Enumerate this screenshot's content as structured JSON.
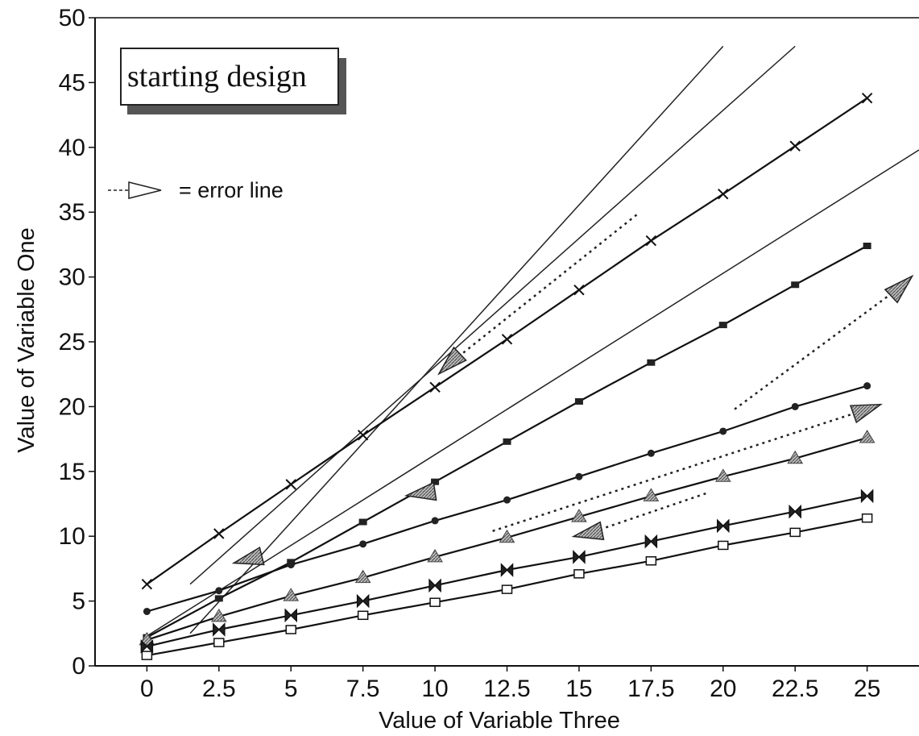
{
  "chart_data": {
    "type": "line",
    "xlabel": "Value of Variable Three",
    "ylabel": "Value of Variable One",
    "xlim": [
      -1.8,
      26.8
    ],
    "ylim": [
      0,
      50
    ],
    "x_ticks": [
      "0",
      "2.5",
      "5",
      "7.5",
      "10",
      "12.5",
      "15",
      "17.5",
      "20",
      "22.5",
      "25"
    ],
    "y_ticks": [
      "0",
      "5",
      "10",
      "15",
      "20",
      "25",
      "30",
      "35",
      "40",
      "45",
      "50"
    ],
    "x": [
      0,
      2.5,
      5,
      7.5,
      10,
      12.5,
      15,
      17.5,
      20,
      22.5,
      25
    ],
    "grid": false,
    "legend_box_text": "starting design",
    "legend_error_text": "= error line",
    "series": [
      {
        "marker": "x",
        "values": [
          6.3,
          10.2,
          14.0,
          17.8,
          21.5,
          25.2,
          29.0,
          32.8,
          36.4,
          40.1,
          43.8
        ]
      },
      {
        "marker": "filled-square",
        "values": [
          2.2,
          5.2,
          8.0,
          11.1,
          14.2,
          17.3,
          20.4,
          23.4,
          26.3,
          29.4,
          32.4
        ]
      },
      {
        "marker": "filled-circle",
        "values": [
          4.2,
          5.8,
          7.8,
          9.4,
          11.2,
          12.8,
          14.6,
          16.4,
          18.1,
          20.0,
          21.6
        ]
      },
      {
        "marker": "hatched-triangle",
        "values": [
          2.0,
          3.8,
          5.4,
          6.8,
          8.4,
          9.9,
          11.5,
          13.1,
          14.6,
          16.0,
          17.6
        ]
      },
      {
        "marker": "bowtie",
        "values": [
          1.5,
          2.8,
          3.9,
          5.0,
          6.2,
          7.4,
          8.4,
          9.6,
          10.8,
          11.9,
          13.1
        ]
      },
      {
        "marker": "open-square",
        "values": [
          0.8,
          1.8,
          2.8,
          3.9,
          4.9,
          5.9,
          7.1,
          8.1,
          9.3,
          10.3,
          11.4
        ]
      }
    ],
    "reference_lines": [
      {
        "from": [
          1.5,
          6.3
        ],
        "to": [
          22.5,
          47.8
        ]
      },
      {
        "from": [
          1.5,
          2.5
        ],
        "to": [
          20.0,
          47.8
        ]
      },
      {
        "from": [
          0.0,
          2.3
        ],
        "to": [
          26.8,
          39.8
        ]
      }
    ],
    "error_lines": [
      {
        "from": [
          17.0,
          34.8
        ],
        "to": [
          10.5,
          23.3
        ]
      },
      {
        "from": [
          20.4,
          19.8
        ],
        "to": [
          26.2,
          29.3
        ]
      },
      {
        "from": [
          12.0,
          10.4
        ],
        "to": [
          25.0,
          19.8
        ]
      },
      {
        "from": [
          19.4,
          13.3
        ],
        "to": [
          15.3,
          10.2
        ]
      }
    ],
    "error_arrows": [
      {
        "at": [
          10.5,
          23.3
        ],
        "dir": [
          -1.0,
          -0.95
        ]
      },
      {
        "at": [
          26.2,
          29.3
        ],
        "dir": [
          1.0,
          0.95
        ]
      },
      {
        "at": [
          25.0,
          19.8
        ],
        "dir": [
          1.0,
          0.35
        ]
      },
      {
        "at": [
          15.3,
          10.2
        ],
        "dir": [
          -1.0,
          -0.2
        ]
      },
      {
        "at": [
          3.5,
          8.2
        ],
        "dir": [
          -1.0,
          -0.25
        ]
      },
      {
        "at": [
          9.5,
          13.3
        ],
        "dir": [
          -1.0,
          -0.15
        ]
      }
    ]
  }
}
